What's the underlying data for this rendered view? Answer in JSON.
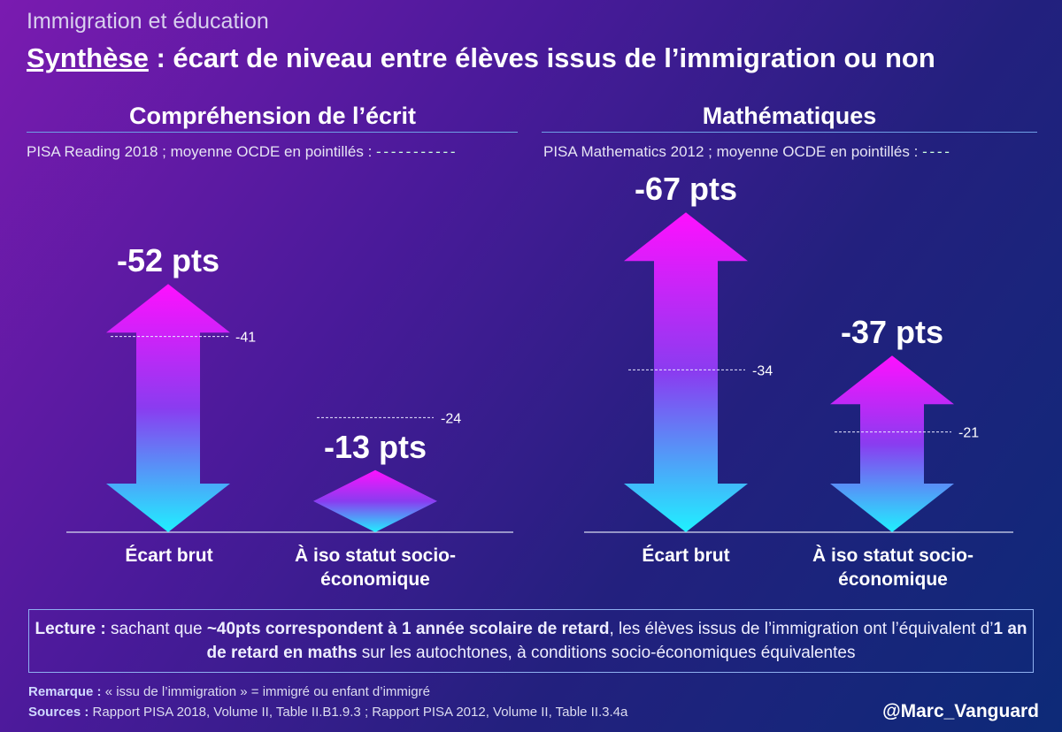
{
  "header": {
    "kicker": "Immigration et éducation",
    "title_underlined": "Synthèse",
    "title_rest": " : écart de niveau entre élèves issus de l’immigration ou non"
  },
  "colors": {
    "arrow_top": "#ff10ff",
    "arrow_mid": "#8a3cf0",
    "arrow_bottom": "#20f0ff",
    "divider": "#6f9fe6"
  },
  "chart_data": [
    {
      "type": "bar",
      "title": "Compréhension de l’écrit",
      "subtitle": "PISA Reading 2018 ; moyenne OCDE en pointillés :",
      "categories": [
        "Écart brut",
        "À iso statut socio-économique"
      ],
      "category_lines": [
        [
          "Écart brut"
        ],
        [
          "À iso statut socio-",
          "économique"
        ]
      ],
      "values": [
        -52,
        -13
      ],
      "data_labels": [
        "-52 pts",
        "-13 pts"
      ],
      "oecd_average": [
        -41,
        -24
      ],
      "oecd_labels": [
        "-41",
        "-24"
      ],
      "ylim": [
        0,
        70
      ]
    },
    {
      "type": "bar",
      "title": "Mathématiques",
      "subtitle": "PISA Mathematics 2012 ; moyenne OCDE en pointillés :",
      "categories": [
        "Écart brut",
        "À iso statut socio-économique"
      ],
      "category_lines": [
        [
          "Écart brut"
        ],
        [
          "À iso statut socio-",
          "économique"
        ]
      ],
      "values": [
        -67,
        -37
      ],
      "data_labels": [
        "-67 pts",
        "-37 pts"
      ],
      "oecd_average": [
        -34,
        -21
      ],
      "oecd_labels": [
        "-34",
        "-21"
      ],
      "ylim": [
        0,
        70
      ]
    }
  ],
  "lecture": {
    "prefix": "Lecture :",
    "t1": " sachant que ",
    "b1": "~40pts correspondent à 1 année scolaire de retard",
    "t2": ", les élèves issus de l’immigration ont l’équivalent d’",
    "b2": "1 an de retard en maths",
    "t3": " sur les autochtones, à conditions socio-économiques équivalentes"
  },
  "footer": {
    "remark_label": "Remarque :",
    "remark_text": " « issu de l’immigration » = immigré ou enfant d’immigré",
    "sources_label": "Sources :",
    "sources_text": " Rapport PISA 2018, Volume II, Table II.B1.9.3 ; Rapport PISA 2012, Volume II, Table II.3.4a",
    "handle": "@Marc_Vanguard"
  }
}
